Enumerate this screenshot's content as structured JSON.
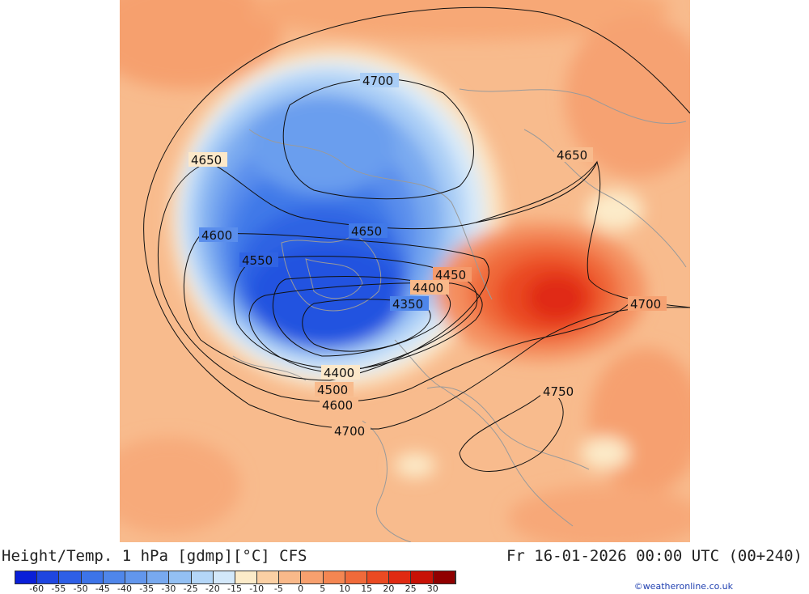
{
  "map": {
    "contour_labels": [
      "4700",
      "4650",
      "4650",
      "4600",
      "4650",
      "4550",
      "4450",
      "4400",
      "4350",
      "4700",
      "4400",
      "4500",
      "4750",
      "4600",
      "4700"
    ]
  },
  "footer": {
    "title": "Height/Temp. 1 hPa [gdmp][°C] CFS",
    "datetime": "Fr 16-01-2026 00:00 UTC (00+240)",
    "credit": "©weatheronline.co.uk"
  },
  "colorbar": {
    "labels": [
      "-60",
      "-55",
      "-50",
      "-45",
      "-40",
      "-35",
      "-30",
      "-25",
      "-20",
      "-15",
      "-10",
      "-5",
      "0",
      "5",
      "10",
      "15",
      "20",
      "25",
      "30"
    ],
    "colors": [
      "#0a1fd8",
      "#1f46e0",
      "#2e5fe6",
      "#3d74e8",
      "#4f86ea",
      "#6296ec",
      "#78a9ef",
      "#93c0f3",
      "#b4d6f7",
      "#d3e8fa",
      "#fcebc9",
      "#fbd0a4",
      "#f9b98a",
      "#f7a06e",
      "#f48652",
      "#f06a3a",
      "#ea4a22",
      "#e02a12",
      "#c81206",
      "#900000"
    ]
  }
}
